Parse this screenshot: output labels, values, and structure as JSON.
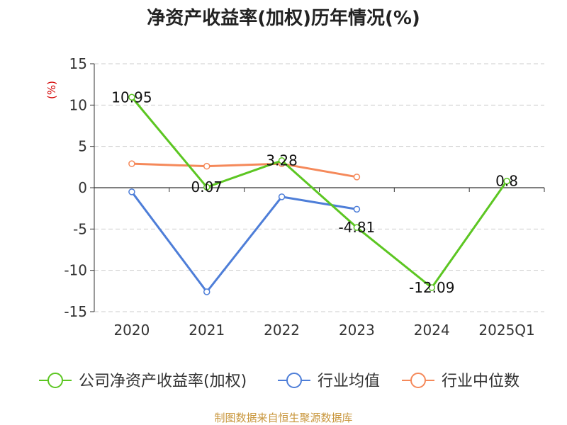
{
  "chart_data": {
    "type": "line",
    "title": "净资产收益率(加权)历年情况(%)",
    "ylabel": "(%)",
    "xlabel": "",
    "categories": [
      "2020",
      "2021",
      "2022",
      "2023",
      "2024",
      "2025Q1"
    ],
    "y_ticks": [
      "15",
      "10",
      "5",
      "0",
      "-5",
      "-10",
      "-15"
    ],
    "ylim": [
      -15,
      15
    ],
    "grid": "horizontal dashed",
    "legend_position": "bottom",
    "series": [
      {
        "name": "公司净资产收益率(加权)",
        "color": "#5cc622",
        "values": [
          10.95,
          0.07,
          3.28,
          -4.81,
          -12.09,
          0.8
        ],
        "labels": [
          "10.95",
          "0.07",
          "3.28",
          "-4.81",
          "-12.09",
          "0.8"
        ]
      },
      {
        "name": "行业均值",
        "color": "#4e7ed8",
        "values": [
          -0.5,
          -12.6,
          -1.1,
          -2.6,
          null,
          null
        ]
      },
      {
        "name": "行业中位数",
        "color": "#f5895a",
        "values": [
          2.9,
          2.6,
          2.9,
          1.3,
          null,
          null
        ]
      }
    ]
  },
  "colors": {
    "ylabel": "#d40000",
    "source": "#c8963c",
    "axis": "#333333",
    "grid": "#cccccc"
  },
  "source_text": "制图数据来自恒生聚源数据库"
}
